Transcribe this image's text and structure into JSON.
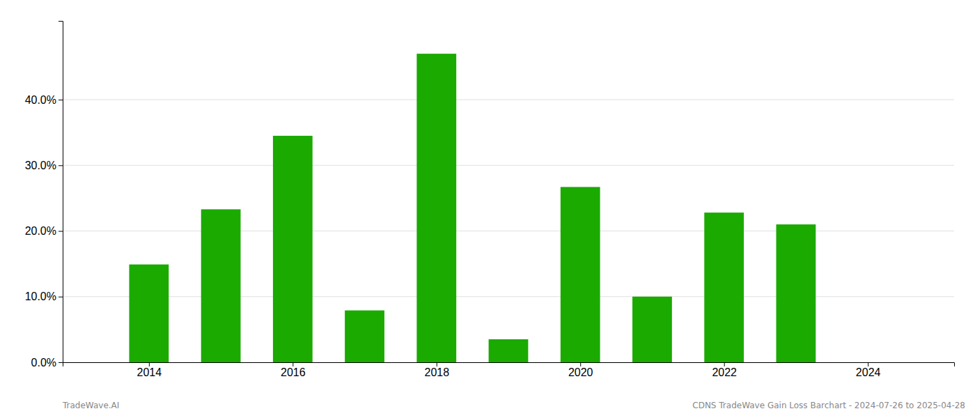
{
  "chart_data": {
    "type": "bar",
    "x": [
      2014,
      2015,
      2016,
      2017,
      2018,
      2019,
      2020,
      2021,
      2022,
      2023
    ],
    "values": [
      0.149,
      0.233,
      0.345,
      0.079,
      0.47,
      0.035,
      0.267,
      0.1,
      0.228,
      0.21
    ],
    "color": "#1aaa00",
    "xlim": [
      2012.8,
      2025.2
    ],
    "xticks": [
      2014,
      2016,
      2018,
      2020,
      2022,
      2024
    ],
    "ylim": [
      0,
      0.52
    ],
    "yticks": [
      {
        "value": 0.0,
        "label": "0.0%"
      },
      {
        "value": 0.1,
        "label": "10.0%"
      },
      {
        "value": 0.2,
        "label": "20.0%"
      },
      {
        "value": 0.3,
        "label": "30.0%"
      },
      {
        "value": 0.4,
        "label": "40.0%"
      }
    ],
    "grid": true,
    "annotations": [
      "TradeWave.AI",
      "CDNS TradeWave Gain Loss Barchart - 2024-07-26 to 2025-04-28"
    ]
  }
}
